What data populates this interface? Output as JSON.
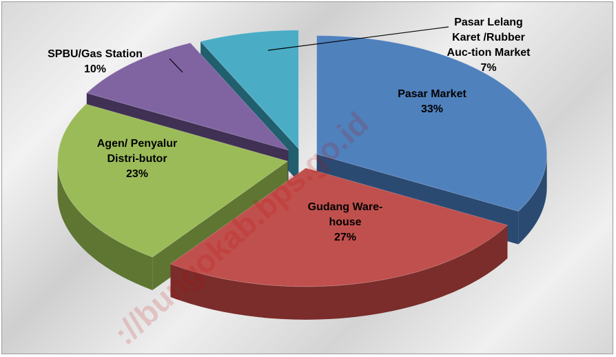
{
  "chart_data": {
    "type": "pie",
    "title": "",
    "slices": [
      {
        "label_lines": [
          "Pasar Market"
        ],
        "value": 33,
        "value_label": "33%",
        "color": "#4f81bd",
        "dark": "#2b4a72"
      },
      {
        "label_lines": [
          "Gudang Ware-",
          "house"
        ],
        "value": 27,
        "value_label": "27%",
        "color": "#c0504d",
        "dark": "#7a2d2b"
      },
      {
        "label_lines": [
          "Agen/ Penyalur",
          "Distri-butor"
        ],
        "value": 23,
        "value_label": "23%",
        "color": "#9bbb59",
        "dark": "#5e7632"
      },
      {
        "label_lines": [
          "SPBU/Gas Station"
        ],
        "value": 10,
        "value_label": "10%",
        "color": "#8064a2",
        "dark": "#3f3054"
      },
      {
        "label_lines": [
          "Pasar Lelang",
          "Karet /Rubber",
          "Auc-tion Market"
        ],
        "value": 7,
        "value_label": "7%",
        "color": "#4bacc6",
        "dark": "#215e6e"
      }
    ],
    "exploded": true,
    "style": "3d",
    "legend": "none"
  },
  "watermark": "://bungokab.bps.go.id",
  "background": "marble-grey"
}
